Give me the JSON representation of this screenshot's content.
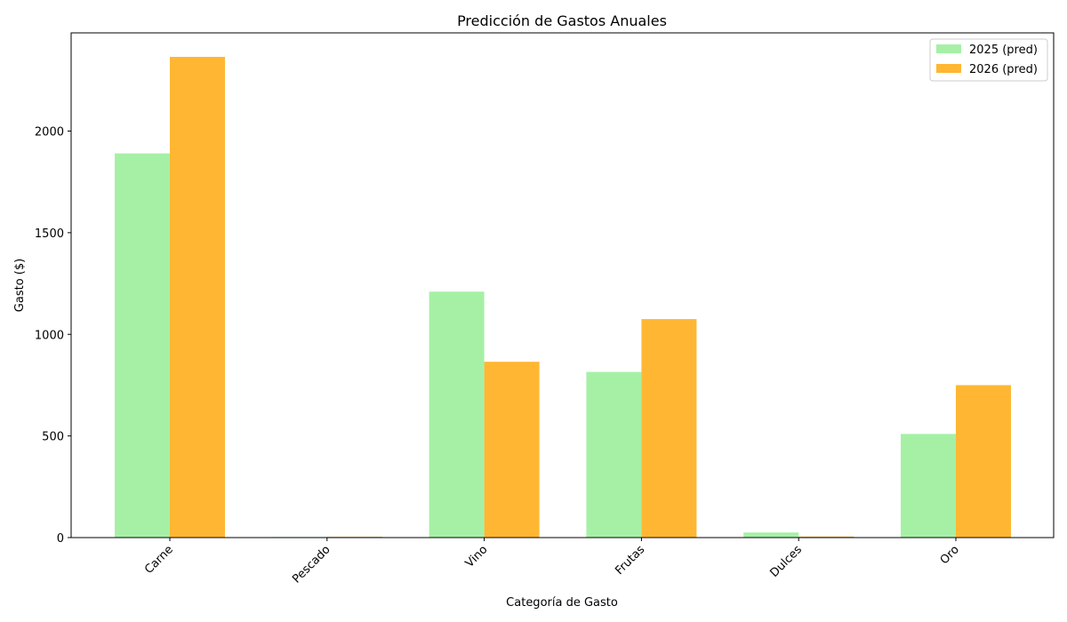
{
  "chart_data": {
    "type": "bar",
    "title": "Predicción de Gastos Anuales",
    "xlabel": "Categoría de Gasto",
    "ylabel": "Gasto ($)",
    "categories": [
      "Carne",
      "Pescado",
      "Vino",
      "Frutas",
      "Dulces",
      "Oro"
    ],
    "series": [
      {
        "name": "2025 (pred)",
        "color": "#a6f0a6",
        "values": [
          1890,
          3,
          1210,
          815,
          25,
          510
        ]
      },
      {
        "name": "2026 (pred)",
        "color": "#ffb733",
        "values": [
          2365,
          4,
          865,
          1075,
          5,
          750
        ]
      }
    ],
    "yticks": [
      0,
      500,
      1000,
      1500,
      2000
    ],
    "ylim": [
      0,
      2500
    ],
    "grid": false,
    "legend_position": "top-right"
  }
}
